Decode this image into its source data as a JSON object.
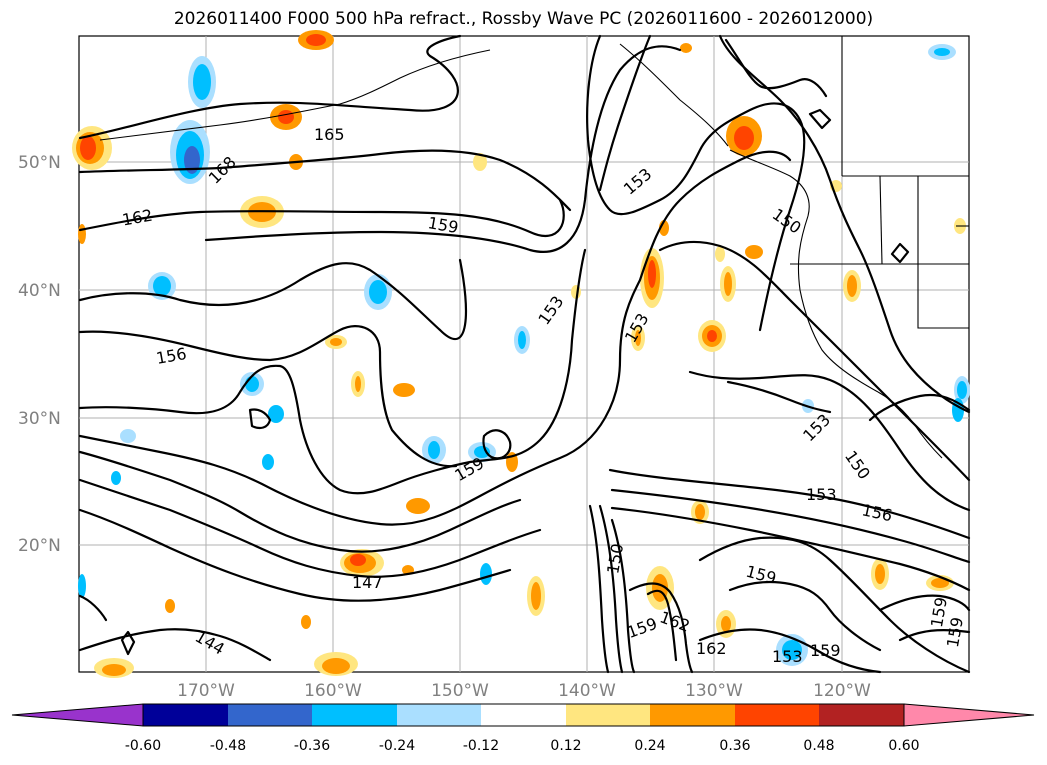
{
  "title": "2026011400 F000 500 hPa refract., Rossby Wave PC (2026011600 - 2026012000)",
  "map": {
    "lat_ticks": [
      "50°N",
      "40°N",
      "30°N",
      "20°N"
    ],
    "lon_ticks": [
      "170°W",
      "160°W",
      "150°W",
      "140°W",
      "130°W",
      "120°W"
    ],
    "contour_labels": [
      "165",
      "168",
      "162",
      "159",
      "156",
      "153",
      "153",
      "153",
      "150",
      "153",
      "150",
      "153",
      "156",
      "159",
      "150",
      "147",
      "144",
      "159",
      "162",
      "162",
      "159",
      "153",
      "159",
      "159",
      "159"
    ]
  },
  "colorbar": {
    "ticks": [
      "-0.60",
      "-0.48",
      "-0.36",
      "-0.24",
      "-0.12",
      "0.12",
      "0.24",
      "0.36",
      "0.48",
      "0.60"
    ],
    "colors": {
      "below_min": "#9933cc",
      "b1": "#000099",
      "b2": "#3366cc",
      "b3": "#00bfff",
      "b4": "#aadfff",
      "b5": "#ffffff",
      "b6": "#ffe680",
      "b7": "#ff9900",
      "b8": "#ff4400",
      "b9": "#b22222",
      "above_max": "#ff88aa"
    }
  }
}
